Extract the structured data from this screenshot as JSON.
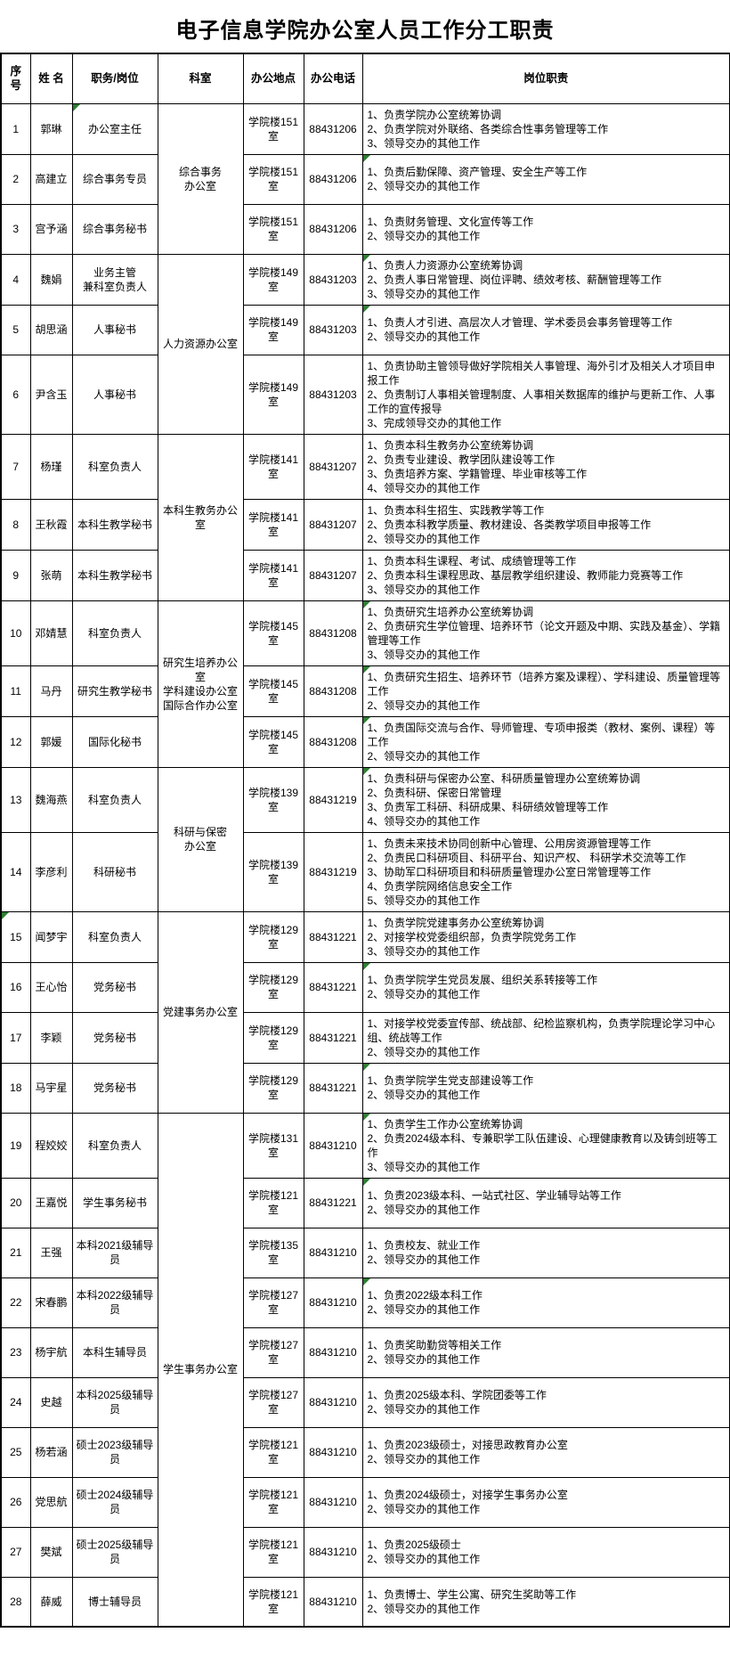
{
  "title": "电子信息学院办公室人员工作分工职责",
  "colors": {
    "marker_green": "#2e7d32",
    "border": "#000000",
    "background": "#ffffff"
  },
  "table": {
    "headers": {
      "no": "序号",
      "name": "姓 名",
      "duty": "职务/岗位",
      "dept": "科室",
      "location": "办公地点",
      "phone": "办公电话",
      "responsibility": "岗位职责"
    },
    "departments": [
      {
        "name": "综合事务\n办公室",
        "from": 1,
        "to": 3
      },
      {
        "name": "人力资源办公室",
        "from": 4,
        "to": 6
      },
      {
        "name": "本科生教务办公室",
        "from": 7,
        "to": 9
      },
      {
        "name": "研究生培养办公室\n学科建设办公室\n国际合作办公室",
        "from": 10,
        "to": 12
      },
      {
        "name": "科研与保密\n办公室",
        "from": 13,
        "to": 14
      },
      {
        "name": "党建事务办公室",
        "from": 15,
        "to": 18
      },
      {
        "name": "学生事务办公室",
        "from": 19,
        "to": 28
      }
    ],
    "rows": [
      {
        "no": 1,
        "name": "郭琳",
        "duty": "办公室主任",
        "location": "学院楼151室",
        "phone": "88431206",
        "duties": [
          "1、负责学院办公室统筹协调",
          "2、负责学院对外联络、各类综合性事务管理等工作",
          "3、领导交办的其他工作"
        ],
        "markers": [
          "duty"
        ]
      },
      {
        "no": 2,
        "name": "高建立",
        "duty": "综合事务专员",
        "location": "学院楼151室",
        "phone": "88431206",
        "duties": [
          "1、负责后勤保障、资产管理、安全生产等工作",
          "2、领导交办的其他工作"
        ],
        "markers": [
          "resp"
        ]
      },
      {
        "no": 3,
        "name": "宫予涵",
        "duty": "综合事务秘书",
        "location": "学院楼151室",
        "phone": "88431206",
        "duties": [
          "1、负责财务管理、文化宣传等工作",
          "2、领导交办的其他工作"
        ],
        "markers": []
      },
      {
        "no": 4,
        "name": "魏娟",
        "duty": "业务主管\n兼科室负责人",
        "location": "学院楼149室",
        "phone": "88431203",
        "duties": [
          "1、负责人力资源办公室统筹协调",
          "2、负责人事日常管理、岗位评聘、绩效考核、薪酬管理等工作",
          "3、领导交办的其他工作"
        ],
        "markers": [
          "resp"
        ]
      },
      {
        "no": 5,
        "name": "胡思涵",
        "duty": "人事秘书",
        "location": "学院楼149室",
        "phone": "88431203",
        "duties": [
          "1、负责人才引进、高层次人才管理、学术委员会事务管理等工作",
          "2、领导交办的其他工作"
        ],
        "markers": [
          "resp"
        ]
      },
      {
        "no": 6,
        "name": "尹含玉",
        "duty": "人事秘书",
        "location": "学院楼149室",
        "phone": "88431203",
        "duties": [
          "1、负责协助主管领导做好学院相关人事管理、海外引才及相关人才项目申报工作",
          "2、负责制订人事相关管理制度、人事相关数据库的维护与更新工作、人事工作的宣传报导",
          "3、完成领导交办的其他工作"
        ],
        "markers": []
      },
      {
        "no": 7,
        "name": "杨瑾",
        "duty": "科室负责人",
        "location": "学院楼141室",
        "phone": "88431207",
        "duties": [
          "1、负责本科生教务办公室统筹协调",
          "2、负责专业建设、教学团队建设等工作",
          "3、负责培养方案、学籍管理、毕业审核等工作",
          "4、领导交办的其他工作"
        ],
        "markers": []
      },
      {
        "no": 8,
        "name": "王秋霞",
        "duty": "本科生教学秘书",
        "location": "学院楼141室",
        "phone": "88431207",
        "duties": [
          "1、负责本科生招生、实践教学等工作",
          "2、负责本科教学质量、教材建设、各类教学项目申报等工作",
          "2、领导交办的其他工作"
        ],
        "markers": []
      },
      {
        "no": 9,
        "name": "张萌",
        "duty": "本科生教学秘书",
        "location": "学院楼141室",
        "phone": "88431207",
        "duties": [
          "1、负责本科生课程、考试、成绩管理等工作",
          "2、负责本科生课程思政、基层教学组织建设、教师能力竞赛等工作",
          "3、领导交办的其他工作"
        ],
        "markers": []
      },
      {
        "no": 10,
        "name": "邓婧慧",
        "duty": "科室负责人",
        "location": "学院楼145室",
        "phone": "88431208",
        "duties": [
          "1、负责研究生培养办公室统筹协调",
          "2、负责研究生学位管理、培养环节（论文开题及中期、实践及基金）、学籍管理等工作",
          "3、领导交办的其他工作"
        ],
        "markers": [
          "resp"
        ]
      },
      {
        "no": 11,
        "name": "马丹",
        "duty": "研究生教学秘书",
        "location": "学院楼145室",
        "phone": "88431208",
        "duties": [
          "1、负责研究生招生、培养环节（培养方案及课程）、学科建设、质量管理等工作",
          "2、领导交办的其他工作"
        ],
        "markers": [
          "resp"
        ]
      },
      {
        "no": 12,
        "name": "郭媛",
        "duty": "国际化秘书",
        "location": "学院楼145室",
        "phone": "88431208",
        "duties": [
          "1、负责国际交流与合作、导师管理、专项申报类（教材、案例、课程）等工作",
          "2、领导交办的其他工作"
        ],
        "markers": [
          "resp"
        ]
      },
      {
        "no": 13,
        "name": "魏海燕",
        "duty": "科室负责人",
        "location": "学院楼139室",
        "phone": "88431219",
        "duties": [
          "1、负责科研与保密办公室、科研质量管理办公室统筹协调",
          "2、负责科研、保密日常管理",
          "3、负责军工科研、科研成果、科研绩效管理等工作",
          "4、领导交办的其他工作"
        ],
        "markers": [
          "resp"
        ]
      },
      {
        "no": 14,
        "name": "李彦利",
        "duty": "科研秘书",
        "location": "学院楼139室",
        "phone": "88431219",
        "duties": [
          "1、负责未来技术协同创新中心管理、公用房资源管理等工作",
          "2、负责民口科研项目、科研平台、知识产权、 科研学术交流等工作",
          "3、协助军口科研项目和科研质量管理办公室日常管理等工作",
          "4、负责学院网络信息安全工作",
          "5、领导交办的其他工作"
        ],
        "markers": []
      },
      {
        "no": 15,
        "name": "闻梦宇",
        "duty": "科室负责人",
        "location": "学院楼129室",
        "phone": "88431221",
        "duties": [
          "1、负责学院党建事务办公室统筹协调",
          "2、对接学校党委组织部，负责学院党务工作",
          "3、领导交办的其他工作"
        ],
        "markers": [
          "index"
        ]
      },
      {
        "no": 16,
        "name": "王心怡",
        "duty": "党务秘书",
        "location": "学院楼129室",
        "phone": "88431221",
        "duties": [
          "1、负责学院学生党员发展、组织关系转接等工作",
          "2、领导交办的其他工作"
        ],
        "markers": [
          "resp"
        ]
      },
      {
        "no": 17,
        "name": "李颖",
        "duty": "党务秘书",
        "location": "学院楼129室",
        "phone": "88431221",
        "duties": [
          "1、对接学校党委宣传部、统战部、纪检监察机构，负责学院理论学习中心组、统战等工作",
          "2、领导交办的其他工作"
        ],
        "markers": []
      },
      {
        "no": 18,
        "name": "马宇星",
        "duty": "党务秘书",
        "location": "学院楼129室",
        "phone": "88431221",
        "duties": [
          "1、负责学院学生党支部建设等工作",
          "2、领导交办的其他工作"
        ],
        "markers": [
          "resp"
        ]
      },
      {
        "no": 19,
        "name": "程姣姣",
        "duty": "科室负责人",
        "location": "学院楼131室",
        "phone": "88431210",
        "duties": [
          "1、负责学生工作办公室统筹协调",
          "2、负责2024级本科、专兼职学工队伍建设、心理健康教育以及铸剑班等工作",
          "3、领导交办的其他工作"
        ],
        "markers": [
          "resp"
        ]
      },
      {
        "no": 20,
        "name": "王嘉悦",
        "duty": "学生事务秘书",
        "location": "学院楼121室",
        "phone": "88431221",
        "duties": [
          "1、负责2023级本科、一站式社区、学业辅导站等工作",
          "2、领导交办的其他工作"
        ],
        "markers": [
          "resp"
        ]
      },
      {
        "no": 21,
        "name": "王强",
        "duty": "本科2021级辅导员",
        "location": "学院楼135室",
        "phone": "88431210",
        "duties": [
          "1、负责校友、就业工作",
          "2、领导交办的其他工作"
        ],
        "markers": []
      },
      {
        "no": 22,
        "name": "宋春鹏",
        "duty": "本科2022级辅导员",
        "location": "学院楼127室",
        "phone": "88431210",
        "duties": [
          "1、负责2022级本科工作",
          "2、领导交办的其他工作"
        ],
        "markers": [
          "resp"
        ]
      },
      {
        "no": 23,
        "name": "杨宇航",
        "duty": "本科生辅导员",
        "location": "学院楼127室",
        "phone": "88431210",
        "duties": [
          "1、负责奖助勤贷等相关工作",
          "2、领导交办的其他工作"
        ],
        "markers": []
      },
      {
        "no": 24,
        "name": "史越",
        "duty": "本科2025级辅导员",
        "location": "学院楼127室",
        "phone": "88431210",
        "duties": [
          "1、负责2025级本科、学院团委等工作",
          "2、领导交办的其他工作"
        ],
        "markers": []
      },
      {
        "no": 25,
        "name": "杨若涵",
        "duty": "硕士2023级辅导员",
        "location": "学院楼121室",
        "phone": "88431210",
        "duties": [
          "1、负责2023级硕士，对接思政教育办公室",
          "2、领导交办的其他工作"
        ],
        "markers": []
      },
      {
        "no": 26,
        "name": "党思航",
        "duty": "硕士2024级辅导员",
        "location": "学院楼121室",
        "phone": "88431210",
        "duties": [
          "1、负责2024级硕士，对接学生事务办公室",
          "2、领导交办的其他工作"
        ],
        "markers": []
      },
      {
        "no": 27,
        "name": "樊斌",
        "duty": "硕士2025级辅导员",
        "location": "学院楼121室",
        "phone": "88431210",
        "duties": [
          "1、负责2025级硕士",
          "2、领导交办的其他工作"
        ],
        "markers": []
      },
      {
        "no": 28,
        "name": "薛威",
        "duty": "博士辅导员",
        "location": "学院楼121室",
        "phone": "88431210",
        "duties": [
          "1、负责博士、学生公寓、研究生奖助等工作",
          "2、领导交办的其他工作"
        ],
        "markers": []
      }
    ]
  }
}
